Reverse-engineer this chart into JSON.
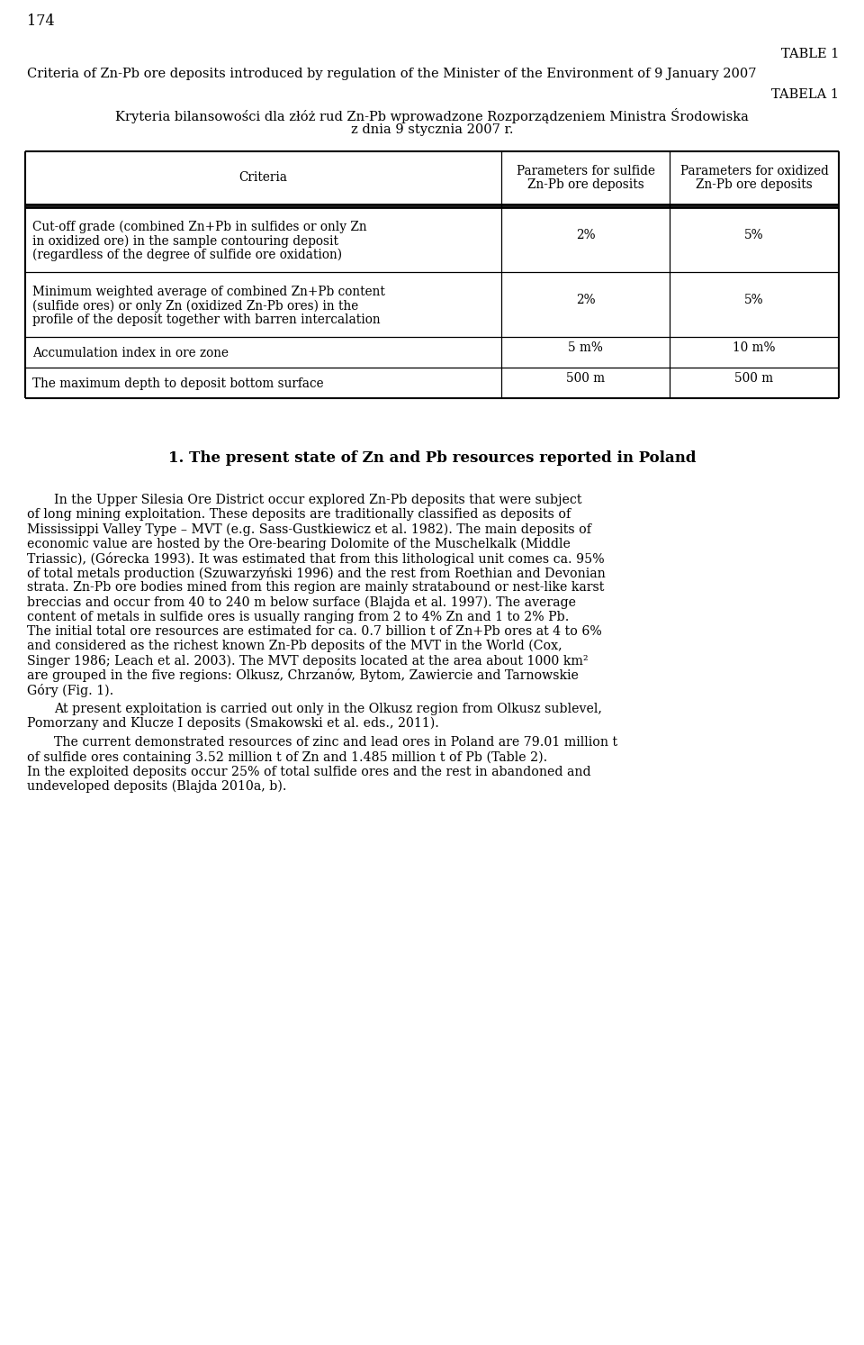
{
  "page_number": "174",
  "table_label_right": "TABLE 1",
  "table_title_en": "Criteria of Zn-Pb ore deposits introduced by regulation of the Minister of the Environment of 9 January 2007",
  "table_label_right2": "TABELA 1",
  "table_title_pl_line1": "Kryteria bilansowości dla złóż rud Zn-Pb wprowadzone Rozporządzeniem Ministra Środowiska",
  "table_title_pl_line2": "z dnia 9 stycznia 2007 r.",
  "col_headers": [
    "Criteria",
    "Parameters for sulfide\nZn-Pb ore deposits",
    "Parameters for oxidized\nZn-Pb ore deposits"
  ],
  "rows": [
    {
      "criteria_lines": [
        "Cut-off grade (combined Zn+Pb in sulfides or only Zn",
        "in oxidized ore) in the sample contouring deposit",
        "(regardless of the degree of sulfide ore oxidation)"
      ],
      "sulfide": "2%",
      "oxidized": "5%"
    },
    {
      "criteria_lines": [
        "Minimum weighted average of combined Zn+Pb content",
        "(sulfide ores) or only Zn (oxidized Zn-Pb ores) in the",
        "profile of the deposit together with barren intercalation"
      ],
      "sulfide": "2%",
      "oxidized": "5%"
    },
    {
      "criteria_lines": [
        "Accumulation index in ore zone"
      ],
      "sulfide": "5 m%",
      "oxidized": "10 m%"
    },
    {
      "criteria_lines": [
        "The maximum depth to deposit bottom surface"
      ],
      "sulfide": "500 m",
      "oxidized": "500 m"
    }
  ],
  "section_heading": "1. The present state of Zn and Pb resources reported in Poland",
  "body_paragraphs": [
    {
      "indent": true,
      "lines": [
        "In the Upper Silesia Ore District occur explored Zn-Pb deposits that were subject",
        "of long mining exploitation. These deposits are traditionally classified as deposits of",
        "Mississippi Valley Type – MVT (e.g. Sass-Gustkiewicz et al. 1982). The main deposits of",
        "economic value are hosted by the Ore-bearing Dolomite of the Muschelkalk (Middle",
        "Triassic), (Górecka 1993). It was estimated that from this lithological unit comes ca. 95%",
        "of total metals production (Szuwarzyński 1996) and the rest from Roethian and Devonian",
        "strata. Zn-Pb ore bodies mined from this region are mainly stratabound or nest-like karst",
        "breccias and occur from 40 to 240 m below surface (Blajda et al. 1997). The average",
        "content of metals in sulfide ores is usually ranging from 2 to 4% Zn and 1 to 2% Pb.",
        "The initial total ore resources are estimated for ca. 0.7 billion t of Zn+Pb ores at 4 to 6%",
        "and considered as the richest known Zn-Pb deposits of the MVT in the World (Cox,",
        "Singer 1986; Leach et al. 2003). The MVT deposits located at the area about 1000 km²",
        "are grouped in the five regions: Olkusz, Chrzanów, Bytom, Zawiercie and Tarnowskie",
        "Góry (Fig. 1)."
      ]
    },
    {
      "indent": true,
      "lines": [
        "At present exploitation is carried out only in the Olkusz region from Olkusz sublevel,",
        "Pomorzany and Klucze I deposits (Smakowski et al. eds., 2011)."
      ]
    },
    {
      "indent": true,
      "lines": [
        "The current demonstrated resources of zinc and lead ores in Poland are 79.01 million t",
        "of sulfide ores containing 3.52 million t of Zn and 1.485 million t of Pb (Table 2).",
        "In the exploited deposits occur 25% of total sulfide ores and the rest in abandoned and",
        "undeveloped deposits (Blajda 2010a, b)."
      ]
    }
  ],
  "background_color": "#ffffff",
  "text_color": "#000000"
}
